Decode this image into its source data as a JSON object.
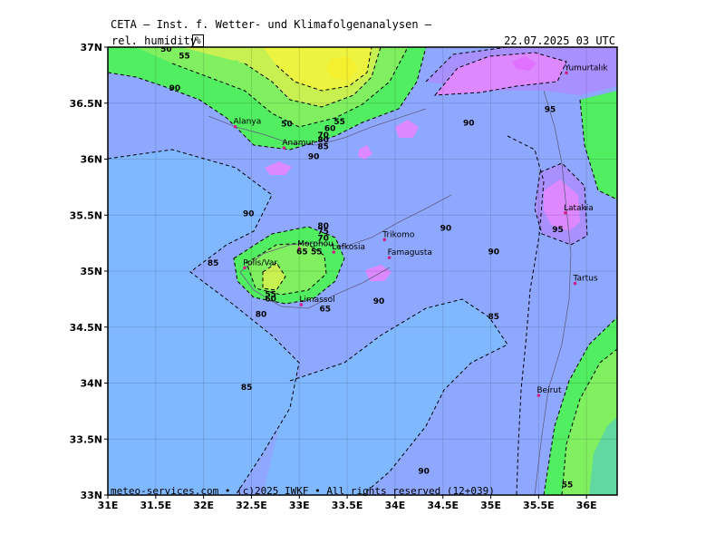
{
  "header": {
    "title": "CETA — Inst. f. Wetter- und Klimafolgenanalysen —",
    "parameter": "rel. humidity",
    "unit": "%",
    "datetime": "22.07.2025 03 UTC"
  },
  "footer": {
    "text": "meteo-services.com • (c)2025 IWKF • All rights reserved (12+039)"
  },
  "axes": {
    "lat_labels": [
      "37N",
      "36.5N",
      "36N",
      "35.5N",
      "35N",
      "34.5N",
      "34N",
      "33.5N",
      "33N"
    ],
    "lon_labels": [
      "31E",
      "31.5E",
      "32E",
      "32.5E",
      "33E",
      "33.5E",
      "34E",
      "34.5E",
      "35E",
      "35.5E",
      "36E"
    ]
  },
  "cities": [
    {
      "name": "Yumurtalık",
      "lat": 36.77,
      "lon": 35.79
    },
    {
      "name": "Latakia",
      "lat": 35.52,
      "lon": 35.78
    },
    {
      "name": "Tartus",
      "lat": 34.89,
      "lon": 35.88
    },
    {
      "name": "Beirut",
      "lat": 33.89,
      "lon": 35.5
    },
    {
      "name": "Trikomo",
      "lat": 35.28,
      "lon": 33.89
    },
    {
      "name": "Morphou",
      "lat": 35.2,
      "lon": 33.0
    },
    {
      "name": "Lefkosia",
      "lat": 35.17,
      "lon": 33.36
    },
    {
      "name": "Famagusta",
      "lat": 35.12,
      "lon": 33.94
    },
    {
      "name": "Polis/Var.",
      "lat": 35.03,
      "lon": 32.43
    },
    {
      "name": "Limassol",
      "lat": 34.7,
      "lon": 33.02
    },
    {
      "name": "Alanya",
      "lat": 36.29,
      "lon": 32.33
    },
    {
      "name": "Anamur",
      "lat": 36.1,
      "lon": 32.84
    }
  ],
  "contour_labels": [
    {
      "text": "50",
      "lat": 36.96,
      "lon": 31.61
    },
    {
      "text": "55",
      "lat": 36.9,
      "lon": 31.8
    },
    {
      "text": "90",
      "lat": 36.61,
      "lon": 31.7
    },
    {
      "text": "50",
      "lat": 36.29,
      "lon": 32.87
    },
    {
      "text": "55",
      "lat": 36.31,
      "lon": 33.42
    },
    {
      "text": "60",
      "lat": 36.25,
      "lon": 33.32
    },
    {
      "text": "70",
      "lat": 36.19,
      "lon": 33.25
    },
    {
      "text": "80",
      "lat": 36.15,
      "lon": 33.25
    },
    {
      "text": "85",
      "lat": 36.09,
      "lon": 33.25
    },
    {
      "text": "90",
      "lat": 36.0,
      "lon": 33.15
    },
    {
      "text": "90",
      "lat": 36.3,
      "lon": 34.77
    },
    {
      "text": "95",
      "lat": 36.42,
      "lon": 35.62
    },
    {
      "text": "90",
      "lat": 35.49,
      "lon": 32.47
    },
    {
      "text": "90",
      "lat": 35.36,
      "lon": 34.53
    },
    {
      "text": "95",
      "lat": 35.35,
      "lon": 35.7
    },
    {
      "text": "80",
      "lat": 35.38,
      "lon": 33.25
    },
    {
      "text": "75",
      "lat": 35.33,
      "lon": 33.25
    },
    {
      "text": "70",
      "lat": 35.27,
      "lon": 33.25
    },
    {
      "text": "65",
      "lat": 35.15,
      "lon": 33.03
    },
    {
      "text": "55",
      "lat": 35.15,
      "lon": 33.18
    },
    {
      "text": "85",
      "lat": 35.05,
      "lon": 32.1
    },
    {
      "text": "90",
      "lat": 35.15,
      "lon": 35.03
    },
    {
      "text": "55",
      "lat": 34.77,
      "lon": 32.7
    },
    {
      "text": "60",
      "lat": 34.73,
      "lon": 32.7
    },
    {
      "text": "80",
      "lat": 34.59,
      "lon": 32.6
    },
    {
      "text": "65",
      "lat": 34.64,
      "lon": 33.27
    },
    {
      "text": "90",
      "lat": 34.71,
      "lon": 33.83
    },
    {
      "text": "85",
      "lat": 34.57,
      "lon": 35.03
    },
    {
      "text": "85",
      "lat": 33.94,
      "lon": 32.45
    },
    {
      "text": "90",
      "lat": 33.19,
      "lon": 34.3
    },
    {
      "text": "55",
      "lat": 33.07,
      "lon": 35.8
    }
  ],
  "colors": {
    "magenta": "#dd88ff",
    "violet": "#a890ff",
    "blue": "#8ea8ff",
    "lightblue": "#80b8ff",
    "green": "#50ee60",
    "lightgreen": "#80f060",
    "yellowgreen": "#c8f050",
    "yellow": "#ecf440",
    "teal": "#60d8a0"
  }
}
